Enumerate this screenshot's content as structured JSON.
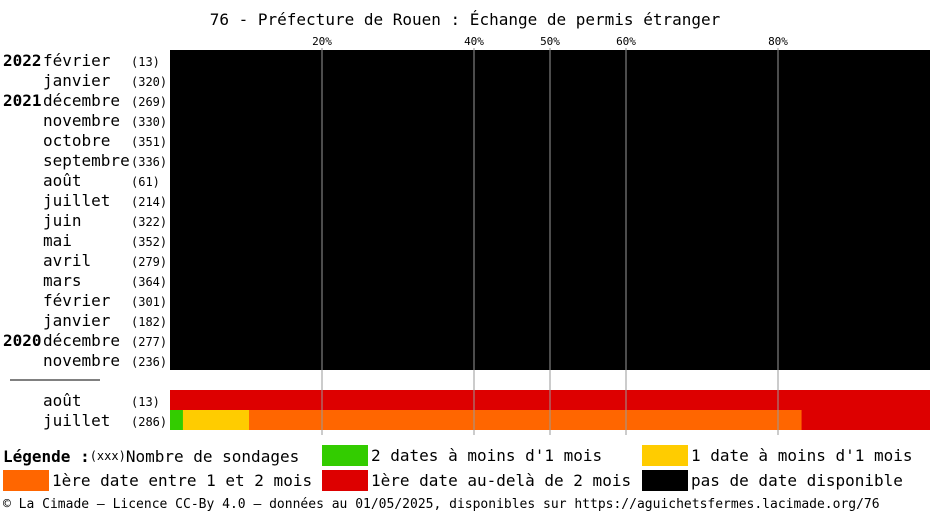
{
  "chart_data": {
    "type": "bar",
    "title": "76 - Préfecture de Rouen : Échange de permis étranger",
    "x_ticks": [
      "20%",
      "40%",
      "50%",
      "60%",
      "80%"
    ],
    "x_tick_values": [
      20,
      40,
      50,
      60,
      80
    ],
    "xlim": [
      0,
      100
    ],
    "categories": [
      {
        "year": "2022",
        "month": "février",
        "count": "(13)"
      },
      {
        "year": "",
        "month": "janvier",
        "count": "(320)"
      },
      {
        "year": "2021",
        "month": "décembre",
        "count": "(269)"
      },
      {
        "year": "",
        "month": "novembre",
        "count": "(330)"
      },
      {
        "year": "",
        "month": "octobre",
        "count": "(351)"
      },
      {
        "year": "",
        "month": "septembre",
        "count": "(336)"
      },
      {
        "year": "",
        "month": "août",
        "count": "(61)"
      },
      {
        "year": "",
        "month": "juillet",
        "count": "(214)"
      },
      {
        "year": "",
        "month": "juin",
        "count": "(322)"
      },
      {
        "year": "",
        "month": "mai",
        "count": "(352)"
      },
      {
        "year": "",
        "month": "avril",
        "count": "(279)"
      },
      {
        "year": "",
        "month": "mars",
        "count": "(364)"
      },
      {
        "year": "",
        "month": "février",
        "count": "(301)"
      },
      {
        "year": "",
        "month": "janvier",
        "count": "(182)"
      },
      {
        "year": "2020",
        "month": "décembre",
        "count": "(277)"
      },
      {
        "year": "",
        "month": "novembre",
        "count": "(236)"
      },
      {
        "year": "",
        "month": "août",
        "count": "(13)"
      },
      {
        "year": "",
        "month": "juillet",
        "count": "(286)"
      }
    ],
    "series": [
      {
        "name": "2 dates à moins d'1 mois",
        "color": "#33cc00",
        "values": [
          0,
          0,
          0,
          0,
          0,
          0,
          0,
          0,
          0,
          0,
          0,
          0,
          0,
          0,
          0,
          0,
          0,
          1.7
        ]
      },
      {
        "name": "1 date à moins d'1 mois",
        "color": "#ffcc00",
        "values": [
          0,
          0,
          0,
          0,
          0,
          0,
          0,
          0,
          0,
          0,
          0,
          0,
          0,
          0,
          0,
          0,
          0,
          8.7
        ]
      },
      {
        "name": "1ère date entre 1 et 2 mois",
        "color": "#ff6600",
        "values": [
          0,
          0,
          0,
          0,
          0,
          0,
          0,
          0,
          0,
          0,
          0,
          0,
          0,
          0,
          0,
          0,
          0,
          72.7
        ]
      },
      {
        "name": "1ère date au-delà de 2 mois",
        "color": "#dd0000",
        "values": [
          0,
          0,
          0,
          0,
          0,
          0,
          0,
          0,
          0,
          0,
          0,
          0,
          0,
          0,
          0,
          0,
          100,
          16.9
        ]
      },
      {
        "name": "pas de date disponible",
        "color": "#000000",
        "values": [
          100,
          100,
          100,
          100,
          100,
          100,
          100,
          100,
          100,
          100,
          100,
          100,
          100,
          100,
          100,
          100,
          0,
          0
        ]
      }
    ]
  },
  "legend": {
    "title": "Légende :",
    "count_hint": "(xxx)",
    "count_label": "Nombre de sondages"
  },
  "footer": "© La Cimade – Licence CC-By 4.0 – données au 01/05/2025, disponibles sur https://aguichetsfermes.lacimade.org/76"
}
